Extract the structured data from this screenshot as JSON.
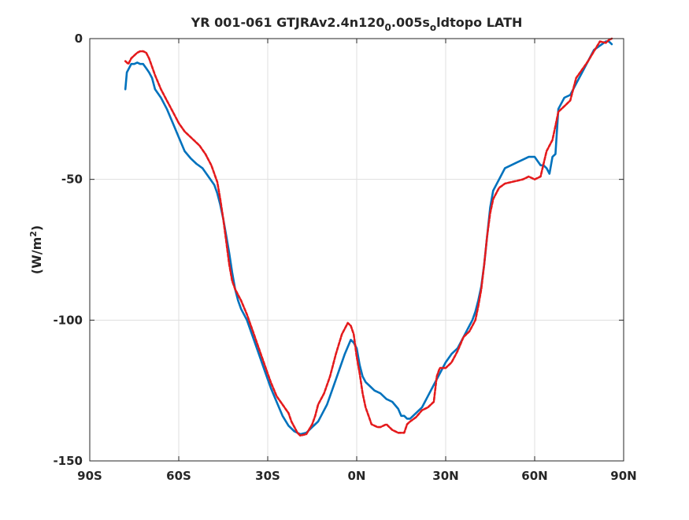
{
  "chart_data": {
    "type": "line",
    "title": {
      "prefix": "YR 001-061 GTJRAv2.4n120",
      "sub1": "0",
      "middle": ".005s",
      "sub2": "o",
      "suffix": "ldtopo LATH"
    },
    "xlabel": "",
    "ylabel": {
      "main": "(W/m",
      "sup": "2",
      "close": ")"
    },
    "xlim": [
      -90,
      90
    ],
    "ylim": [
      -150,
      0
    ],
    "xticks": [
      {
        "value": -90,
        "label": "90S"
      },
      {
        "value": -60,
        "label": "60S"
      },
      {
        "value": -30,
        "label": "30S"
      },
      {
        "value": 0,
        "label": "0N"
      },
      {
        "value": 30,
        "label": "30N"
      },
      {
        "value": 60,
        "label": "60N"
      },
      {
        "value": 90,
        "label": "90N"
      }
    ],
    "yticks": [
      {
        "value": 0,
        "label": "0"
      },
      {
        "value": -50,
        "label": "-50"
      },
      {
        "value": -100,
        "label": "-100"
      },
      {
        "value": -150,
        "label": "-150"
      }
    ],
    "grid": true,
    "series": [
      {
        "color": "#0072bd",
        "dash": "solid",
        "x": [
          -78,
          -77.5,
          -76,
          -75,
          -74,
          -73,
          -72,
          -71,
          -70,
          -69,
          -68,
          -66,
          -64,
          -62,
          -60,
          -58,
          -56,
          -55,
          -54,
          -52,
          -50,
          -48,
          -47,
          -46,
          -45,
          -44,
          -43,
          -42,
          -41,
          -40,
          -39,
          -38,
          -37,
          -35,
          -33,
          -31,
          -29,
          -27,
          -25,
          -23,
          -21,
          -19,
          -17,
          -15,
          -14,
          -13,
          -12,
          -10,
          -8,
          -6,
          -4,
          -2,
          -1,
          0,
          1,
          2,
          3,
          4,
          6,
          8,
          10,
          12,
          14,
          15,
          16,
          17,
          18,
          20,
          22,
          24,
          26,
          28,
          30,
          32,
          34,
          36,
          38,
          39,
          40,
          41,
          42,
          43,
          44,
          45,
          46,
          48,
          50,
          52,
          54,
          56,
          58,
          59,
          60,
          62,
          63,
          64,
          65,
          66,
          67,
          68,
          70,
          72,
          74,
          76,
          78,
          80,
          82,
          84,
          85,
          86
        ],
        "y": [
          -18,
          -12,
          -9,
          -9,
          -8.5,
          -9,
          -9,
          -10.5,
          -12,
          -14,
          -18,
          -21,
          -25,
          -30,
          -35,
          -40,
          -42.5,
          -43.5,
          -44.5,
          -46,
          -49,
          -52,
          -55,
          -59,
          -64,
          -70,
          -76,
          -83,
          -89,
          -93,
          -96,
          -98,
          -100,
          -106,
          -112,
          -118,
          -124,
          -129,
          -134,
          -137.5,
          -139.5,
          -140.5,
          -140,
          -138,
          -137,
          -136,
          -134,
          -130,
          -124,
          -118,
          -112,
          -107,
          -108,
          -110,
          -116,
          -120,
          -122,
          -123,
          -125,
          -126,
          -128,
          -129,
          -131.5,
          -134,
          -134,
          -135,
          -135,
          -133,
          -131,
          -127,
          -123,
          -119,
          -115,
          -112,
          -110,
          -106,
          -102,
          -100,
          -97,
          -93,
          -88,
          -80,
          -70,
          -60,
          -54,
          -50,
          -46,
          -45,
          -44,
          -43,
          -42,
          -42,
          -42,
          -45,
          -45,
          -46,
          -48,
          -42,
          -41,
          -25,
          -21,
          -20,
          -16,
          -12,
          -8,
          -4,
          -2.5,
          -1,
          -1,
          -2
        ]
      },
      {
        "color": "#e41a1c",
        "dash": "dashed",
        "x": [
          -78,
          -77,
          -76,
          -75,
          -74,
          -73,
          -72,
          -71,
          -70,
          -69,
          -68,
          -66,
          -64,
          -62,
          -60,
          -58,
          -57,
          -56,
          -55,
          -53,
          -51,
          -49,
          -47,
          -46,
          -45,
          -44,
          -43,
          -42,
          -41,
          -40,
          -39,
          -37,
          -35,
          -33,
          -31,
          -29,
          -27,
          -25,
          -23,
          -22,
          -21,
          -20,
          -19,
          -17,
          -15,
          -14,
          -13,
          -11,
          -9,
          -7,
          -5,
          -3,
          -2,
          -1,
          0,
          1,
          2,
          3,
          4,
          5,
          6,
          7,
          8,
          9,
          10,
          12,
          14,
          15,
          16,
          17,
          18,
          20,
          22,
          24,
          26,
          27,
          28,
          29,
          30,
          32,
          34,
          36,
          38,
          40,
          41,
          42,
          43,
          44,
          45,
          46,
          48,
          50,
          52,
          54,
          56,
          58,
          60,
          62,
          64,
          66,
          67,
          68,
          70,
          72,
          74,
          76,
          78,
          80,
          82,
          84,
          85,
          86
        ],
        "y": [
          -8,
          -9,
          -7,
          -6,
          -5,
          -4.5,
          -4.5,
          -5,
          -7,
          -10,
          -13,
          -18,
          -22,
          -26,
          -30,
          -33,
          -34,
          -35,
          -36,
          -38,
          -41,
          -45,
          -51,
          -57,
          -64,
          -72,
          -80,
          -86,
          -89,
          -91,
          -93,
          -98,
          -104,
          -110,
          -116,
          -122,
          -127,
          -130,
          -133,
          -136,
          -138,
          -140,
          -141,
          -140.5,
          -137,
          -134,
          -130,
          -126,
          -120,
          -112,
          -105,
          -101,
          -102,
          -105,
          -113,
          -119,
          -126,
          -131,
          -134,
          -137,
          -137.5,
          -138,
          -138,
          -137.5,
          -137,
          -139,
          -140,
          -140,
          -140,
          -137,
          -136,
          -134.5,
          -132,
          -131,
          -129,
          -120,
          -117,
          -117,
          -117,
          -115,
          -111,
          -106,
          -104,
          -100,
          -95,
          -89,
          -80,
          -70,
          -62,
          -57,
          -53,
          -51.5,
          -51,
          -50.5,
          -50,
          -49,
          -50,
          -49,
          -40,
          -36,
          -31,
          -26,
          -24,
          -22,
          -14,
          -11,
          -8,
          -4.5,
          -1,
          -1.5,
          -0.5,
          0
        ]
      }
    ]
  }
}
